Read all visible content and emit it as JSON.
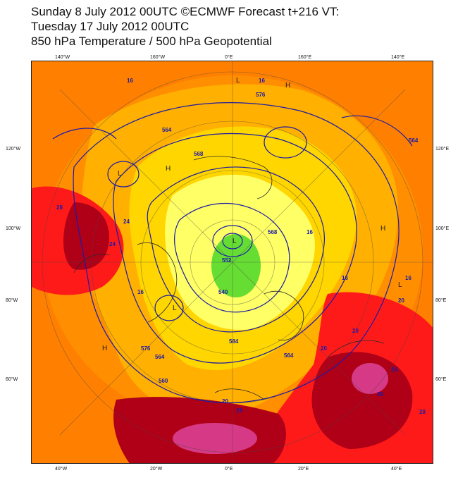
{
  "title": {
    "line1": "Sunday 8 July 2012 00UTC ©ECMWF Forecast t+216 VT:",
    "line2": "Tuesday 17 July 2012 00UTC",
    "line3": "850 hPa Temperature / 500 hPa Geopotential"
  },
  "ticks": {
    "top": [
      "140°W",
      "160°W",
      "0°E",
      "160°E",
      "140°E"
    ],
    "bottom": [
      "40°W",
      "20°W",
      "0°E",
      "20°E",
      "40°E"
    ],
    "left": [
      "120°W",
      "100°W",
      "80°W",
      "60°W"
    ],
    "right": [
      "120°E",
      "100°E",
      "80°E",
      "60°E"
    ]
  },
  "contour_labels": [
    "16",
    "16",
    "16",
    "16",
    "16",
    "16",
    "16",
    "20",
    "20",
    "20",
    "20",
    "24",
    "24",
    "24",
    "24",
    "28",
    "28",
    "28",
    "564",
    "564",
    "564",
    "564",
    "568",
    "568",
    "576",
    "576",
    "540",
    "552",
    "560",
    "584"
  ],
  "pressure_markers": [
    "H",
    "L"
  ],
  "colors": {
    "background": "#ff8000",
    "hot_core": "#d63a86",
    "dark_red": "#b00018",
    "red": "#ff1a1a",
    "orange": "#ff7a00",
    "light_orange": "#ffb000",
    "yellow": "#ffe000",
    "pale_yellow": "#ffff66",
    "green": "#66dd33",
    "contour": "#1a1aa8"
  }
}
